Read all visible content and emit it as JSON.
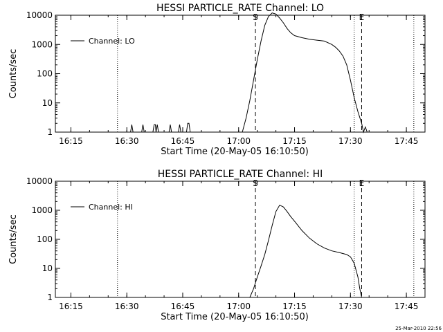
{
  "footer_timestamp": "25-Mar-2010 22:56",
  "chart_data": [
    {
      "type": "line",
      "title": "HESSI PARTICLE_RATE Channel: LO",
      "xlabel": "Start Time (20-May-05 16:10:50)",
      "ylabel": "Counts/sec",
      "yscale": "log",
      "ylim": [
        1,
        10000
      ],
      "yticks": [
        1,
        10,
        100,
        1000,
        10000
      ],
      "ytick_labels": [
        "1",
        "10",
        "100",
        "1000",
        "10000"
      ],
      "xlim": [
        "16:10:50",
        "17:50:00"
      ],
      "xticks": [
        "16:15",
        "16:30",
        "16:45",
        "17:00",
        "17:15",
        "17:30",
        "17:45"
      ],
      "legend": "top-left",
      "series": [
        {
          "name": "Channel: LO",
          "x": [
            "16:31:00",
            "16:31:20",
            "16:31:40",
            "16:34:00",
            "16:34:20",
            "16:34:40",
            "16:37:00",
            "16:37:20",
            "16:37:40",
            "16:37:50",
            "16:38:10",
            "16:38:30",
            "16:41:20",
            "16:41:40",
            "16:42:00",
            "16:43:50",
            "16:44:10",
            "16:44:30",
            "16:46:00",
            "16:46:20",
            "16:46:40",
            "16:47:00",
            "17:01:00",
            "17:02:00",
            "17:03:00",
            "17:04:00",
            "17:05:00",
            "17:06:00",
            "17:07:00",
            "17:08:00",
            "17:09:00",
            "17:10:00",
            "17:11:00",
            "17:12:00",
            "17:13:00",
            "17:14:00",
            "17:15:00",
            "17:17:00",
            "17:19:00",
            "17:21:00",
            "17:23:00",
            "17:25:00",
            "17:26:00",
            "17:27:00",
            "17:28:00",
            "17:29:00",
            "17:30:00",
            "17:31:00",
            "17:32:00",
            "17:33:00",
            "17:33:30",
            "17:34:00",
            "17:34:30",
            "17:35:00"
          ],
          "values": [
            1,
            1.8,
            1,
            1,
            1.8,
            1,
            1,
            1.8,
            1.8,
            1,
            1.8,
            1,
            1,
            1.8,
            1,
            1,
            1.8,
            1,
            1,
            2,
            2,
            1,
            1,
            3,
            12,
            60,
            300,
            1300,
            4500,
            9000,
            12000,
            11000,
            8000,
            5500,
            3500,
            2500,
            2000,
            1700,
            1500,
            1400,
            1300,
            1000,
            800,
            600,
            400,
            200,
            60,
            15,
            5,
            2,
            1,
            1.5,
            1,
            1
          ]
        }
      ],
      "annotations": [
        {
          "label": "S",
          "x": "17:04:30",
          "style": "dashed"
        },
        {
          "label": "E",
          "x": "17:33:00",
          "style": "dashed"
        },
        {
          "label": "",
          "x": "16:27:30",
          "style": "dotted"
        },
        {
          "label": "",
          "x": "17:31:00",
          "style": "dotted"
        },
        {
          "label": "",
          "x": "17:47:00",
          "style": "dotted"
        }
      ]
    },
    {
      "type": "line",
      "title": "HESSI PARTICLE_RATE Channel: HI",
      "xlabel": "Start Time (20-May-05 16:10:50)",
      "ylabel": "Counts/sec",
      "yscale": "log",
      "ylim": [
        1,
        10000
      ],
      "yticks": [
        1,
        10,
        100,
        1000,
        10000
      ],
      "ytick_labels": [
        "1",
        "10",
        "100",
        "1000",
        "10000"
      ],
      "xlim": [
        "16:10:50",
        "17:50:00"
      ],
      "xticks": [
        "16:15",
        "16:30",
        "16:45",
        "17:00",
        "17:15",
        "17:30",
        "17:45"
      ],
      "legend": "top-left",
      "series": [
        {
          "name": "Channel: HI",
          "x": [
            "17:03:00",
            "17:04:00",
            "17:05:00",
            "17:06:00",
            "17:07:00",
            "17:08:00",
            "17:09:00",
            "17:10:00",
            "17:11:00",
            "17:12:00",
            "17:13:00",
            "17:14:00",
            "17:15:00",
            "17:17:00",
            "17:19:00",
            "17:21:00",
            "17:23:00",
            "17:25:00",
            "17:27:00",
            "17:29:00",
            "17:30:00",
            "17:31:00",
            "17:32:00",
            "17:32:30",
            "17:33:00"
          ],
          "values": [
            1,
            2,
            5,
            12,
            30,
            90,
            300,
            900,
            1500,
            1300,
            900,
            600,
            420,
            200,
            110,
            70,
            50,
            40,
            35,
            30,
            25,
            15,
            5,
            2,
            1
          ]
        }
      ],
      "annotations": [
        {
          "label": "S",
          "x": "17:04:30",
          "style": "dashed"
        },
        {
          "label": "E",
          "x": "17:33:00",
          "style": "dashed"
        },
        {
          "label": "",
          "x": "16:27:30",
          "style": "dotted"
        },
        {
          "label": "",
          "x": "17:31:00",
          "style": "dotted"
        },
        {
          "label": "",
          "x": "17:47:00",
          "style": "dotted"
        }
      ]
    }
  ]
}
